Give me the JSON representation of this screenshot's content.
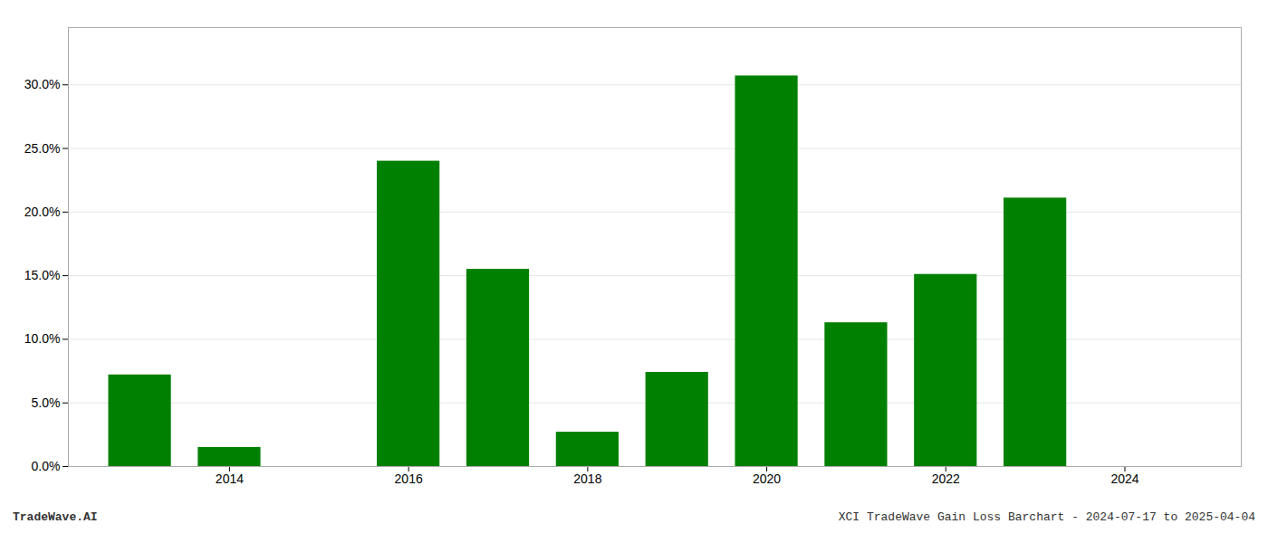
{
  "chart_data": {
    "type": "bar",
    "x": [
      2013,
      2014,
      2015,
      2016,
      2017,
      2018,
      2019,
      2020,
      2021,
      2022,
      2023,
      2024
    ],
    "values": [
      0.072,
      0.015,
      0.0,
      0.24,
      0.155,
      0.027,
      0.074,
      0.307,
      0.113,
      0.151,
      0.211,
      0.0
    ],
    "color": "#008000",
    "xlim": [
      2012.2,
      2025.3
    ],
    "xticks": [
      2014,
      2016,
      2018,
      2020,
      2022,
      2024
    ],
    "ylim": [
      0.0,
      0.345
    ],
    "yticks": [
      {
        "value": 0.0,
        "label": "0.0%"
      },
      {
        "value": 0.05,
        "label": "5.0%"
      },
      {
        "value": 0.1,
        "label": "10.0%"
      },
      {
        "value": 0.15,
        "label": "15.0%"
      },
      {
        "value": 0.2,
        "label": "20.0%"
      },
      {
        "value": 0.25,
        "label": "25.0%"
      },
      {
        "value": 0.3,
        "label": "30.0%"
      }
    ],
    "grid": true,
    "annotations": [
      "TradeWave.AI",
      "XCI TradeWave Gain Loss Barchart - 2024-07-17 to 2025-04-04"
    ]
  }
}
